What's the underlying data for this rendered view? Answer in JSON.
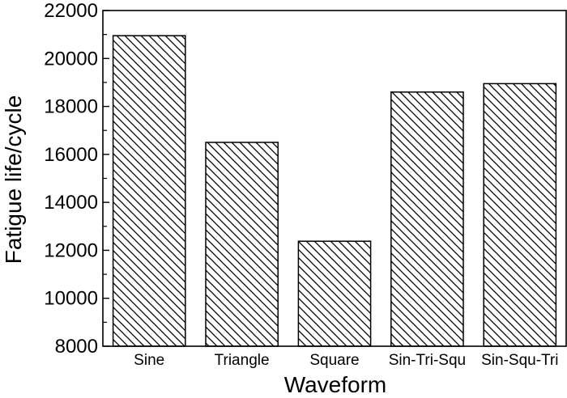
{
  "chart_data": {
    "type": "bar",
    "title": "",
    "xlabel": "Waveform",
    "ylabel": "Fatigue life/cycle",
    "categories": [
      "Sine",
      "Triangle",
      "Square",
      "Sin-Tri-Squ",
      "Sin-Squ-Tri"
    ],
    "values": [
      20950,
      16500,
      12380,
      18600,
      18950
    ],
    "ylim": [
      8000,
      22000
    ],
    "yticks": [
      8000,
      10000,
      12000,
      14000,
      16000,
      18000,
      20000,
      22000
    ],
    "yticks_labels": [
      "8000",
      "10000",
      "12000",
      "14000",
      "16000",
      "18000",
      "20000",
      "22000"
    ],
    "minor_tick_step": 1000,
    "grid": false,
    "legend": "none",
    "bar_fill": "diagonal-hatch",
    "colors": {
      "bar_stroke": "#000000",
      "hatch": "#000000",
      "background": "#ffffff",
      "axis": "#000000"
    }
  }
}
